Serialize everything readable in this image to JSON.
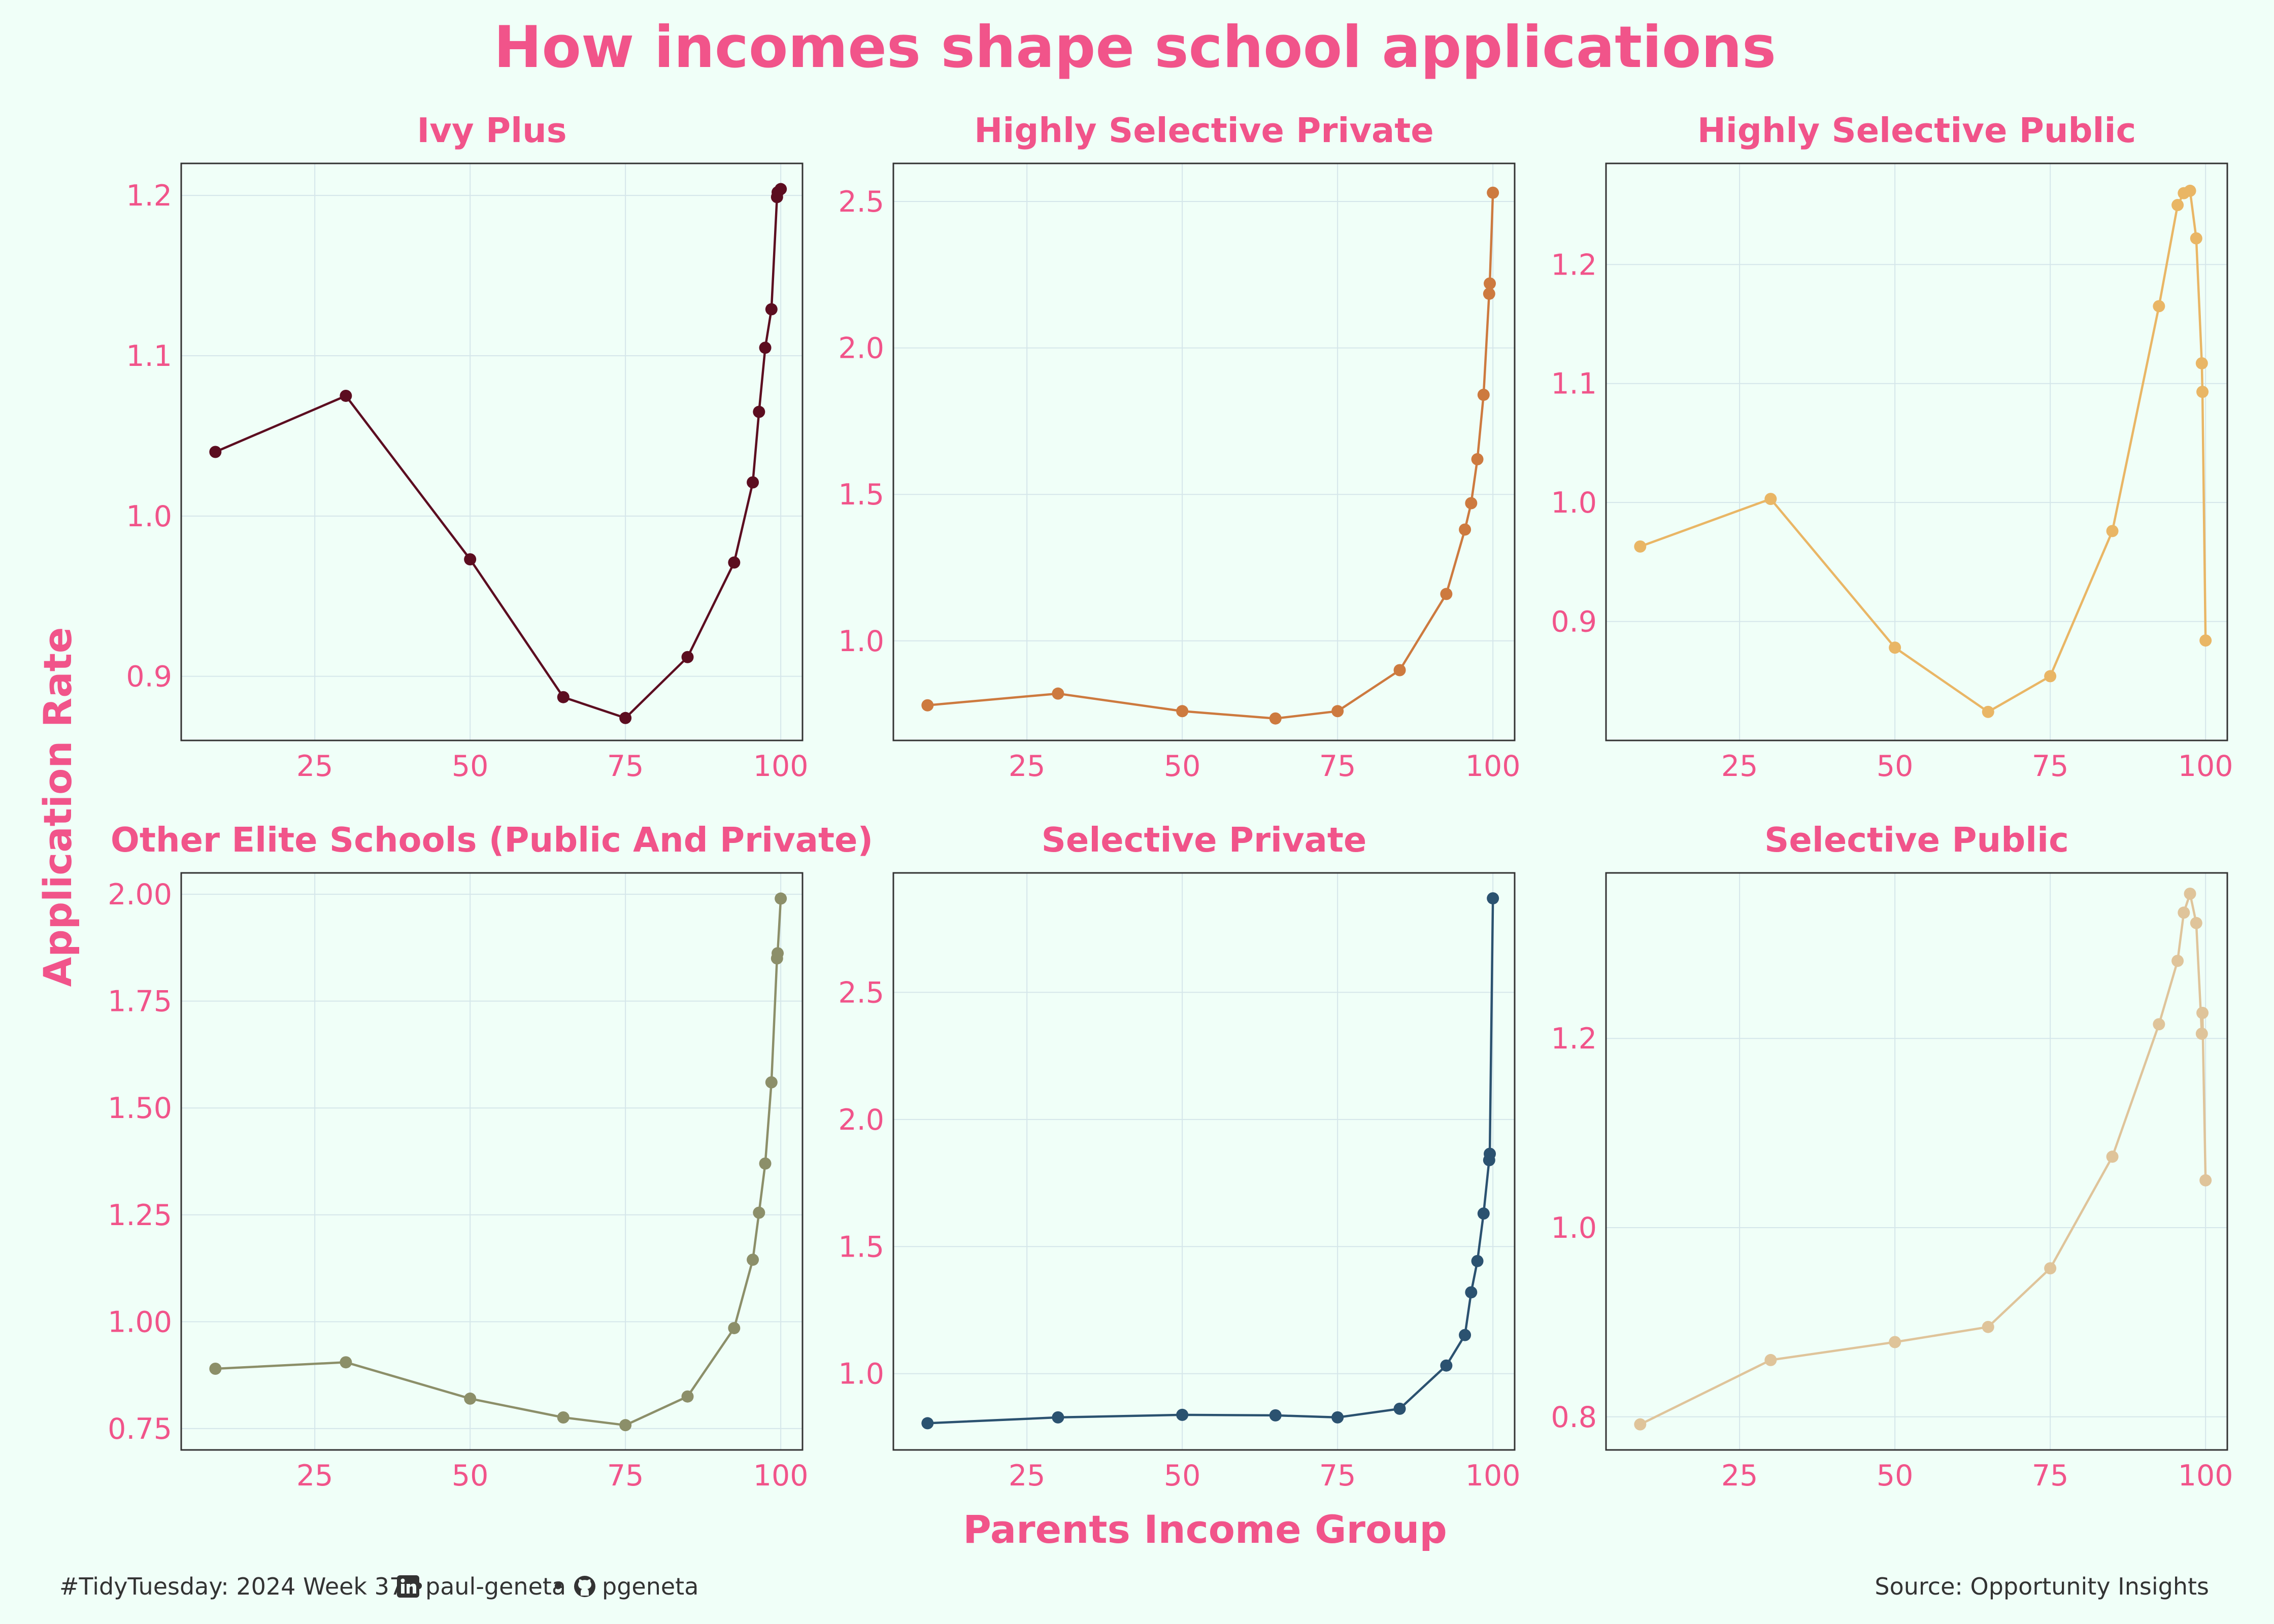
{
  "chart_data": {
    "type": "line",
    "title": "How incomes shape school applications",
    "xlabel": "Parents Income Group",
    "ylabel": "Application Rate",
    "caption_left": "#TidyTuesday: 2024 Week 37 • ",
    "caption_linkedin": "paul-geneta",
    "caption_sep": " • ",
    "caption_github": "pgeneta",
    "caption_right": "Source: Opportunity Insights",
    "x_shared": [
      9,
      30,
      50,
      65,
      75,
      85,
      92.5,
      95.5,
      96.5,
      97.5,
      98.5,
      99.4,
      99.5,
      100
    ],
    "xlim": [
      3.5,
      103.5
    ],
    "xticks": [
      "25",
      "50",
      "75",
      "100"
    ],
    "grid": true,
    "point_markers": true,
    "panels": [
      {
        "name": "Ivy Plus",
        "color": "#5c0d20",
        "ylim": [
          0.86,
          1.22
        ],
        "yticks": [
          "0.9",
          "1.0",
          "1.1",
          "1.2"
        ],
        "values": [
          1.04,
          1.075,
          0.973,
          0.887,
          0.874,
          0.912,
          0.971,
          1.021,
          1.065,
          1.105,
          1.129,
          1.199,
          1.202,
          1.204
        ]
      },
      {
        "name": "Highly Selective Private",
        "color": "#cd7a3f",
        "ylim": [
          0.66,
          2.63
        ],
        "yticks": [
          "1.0",
          "1.5",
          "2.0",
          "2.5"
        ],
        "values": [
          0.78,
          0.82,
          0.76,
          0.735,
          0.76,
          0.9,
          1.16,
          1.38,
          1.47,
          1.62,
          1.84,
          2.185,
          2.22,
          2.53
        ]
      },
      {
        "name": "Highly Selective Public",
        "color": "#e9b665",
        "ylim": [
          0.8,
          1.285
        ],
        "yticks": [
          "0.9",
          "1.0",
          "1.1",
          "1.2"
        ],
        "values": [
          0.963,
          1.003,
          0.878,
          0.824,
          0.854,
          0.976,
          1.165,
          1.25,
          1.26,
          1.262,
          1.222,
          1.117,
          1.093,
          0.884
        ]
      },
      {
        "name": "Other Elite Schools (Public And Private)",
        "color": "#8c8f69",
        "ylim": [
          0.7,
          2.05
        ],
        "yticks": [
          "0.75",
          "1.00",
          "1.25",
          "1.50",
          "1.75",
          "2.00"
        ],
        "values": [
          0.89,
          0.905,
          0.82,
          0.776,
          0.758,
          0.825,
          0.985,
          1.145,
          1.255,
          1.37,
          1.56,
          1.85,
          1.862,
          1.99
        ]
      },
      {
        "name": "Selective Private",
        "color": "#2b5270",
        "ylim": [
          0.7,
          2.97
        ],
        "yticks": [
          "1.0",
          "1.5",
          "2.0",
          "2.5"
        ],
        "values": [
          0.805,
          0.828,
          0.838,
          0.836,
          0.828,
          0.862,
          1.032,
          1.152,
          1.32,
          1.443,
          1.63,
          1.84,
          1.865,
          2.87
        ]
      },
      {
        "name": "Selective Public",
        "color": "#dfc49a",
        "ylim": [
          0.765,
          1.375
        ],
        "yticks": [
          "0.8",
          "1.0",
          "1.2"
        ],
        "values": [
          0.792,
          0.86,
          0.879,
          0.895,
          0.957,
          1.075,
          1.215,
          1.282,
          1.333,
          1.353,
          1.322,
          1.205,
          1.227,
          1.05
        ]
      }
    ]
  }
}
